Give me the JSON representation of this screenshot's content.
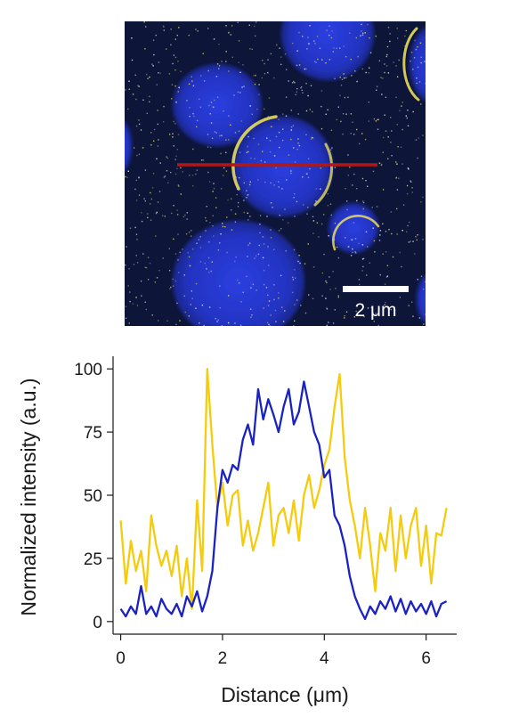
{
  "micrograph": {
    "scale_bar_label": "2 μm",
    "colors": {
      "background": "#0d1538",
      "blue_channel": "#2433c8",
      "yellow_channel": "#f5e85a",
      "line_profile": "#b01818",
      "scale_bar": "#ffffff"
    }
  },
  "chart_data": {
    "type": "line",
    "xlabel": "Distance (μm)",
    "ylabel": "Normalized intensity (a.u.)",
    "xlim": [
      -0.15,
      6.6
    ],
    "ylim": [
      -5,
      105
    ],
    "xticks": [
      0,
      2,
      4,
      6
    ],
    "yticks": [
      0,
      25,
      50,
      75,
      100
    ],
    "grid": false,
    "legend": "none",
    "series": [
      {
        "color": "#1a22c0",
        "x": [
          0,
          0.1,
          0.2,
          0.3,
          0.4,
          0.5,
          0.6,
          0.7,
          0.8,
          0.9,
          1.0,
          1.1,
          1.2,
          1.3,
          1.4,
          1.5,
          1.6,
          1.7,
          1.8,
          1.9,
          2.0,
          2.1,
          2.2,
          2.3,
          2.4,
          2.5,
          2.6,
          2.7,
          2.8,
          2.9,
          3.0,
          3.1,
          3.2,
          3.3,
          3.4,
          3.5,
          3.6,
          3.7,
          3.8,
          3.9,
          4.0,
          4.1,
          4.2,
          4.3,
          4.4,
          4.5,
          4.6,
          4.7,
          4.8,
          4.9,
          5.0,
          5.1,
          5.2,
          5.3,
          5.4,
          5.5,
          5.6,
          5.7,
          5.8,
          5.9,
          6.0,
          6.1,
          6.2,
          6.3,
          6.4
        ],
        "y": [
          5,
          2,
          6,
          3,
          14,
          3,
          6,
          2,
          9,
          5,
          3,
          7,
          2,
          10,
          6,
          12,
          4,
          10,
          20,
          45,
          60,
          55,
          62,
          60,
          72,
          78,
          70,
          92,
          80,
          88,
          82,
          75,
          85,
          92,
          78,
          83,
          95,
          85,
          75,
          70,
          57,
          60,
          42,
          38,
          30,
          18,
          10,
          5,
          1,
          6,
          3,
          8,
          5,
          10,
          4,
          9,
          3,
          8,
          4,
          7,
          3,
          8,
          2,
          7,
          8
        ]
      },
      {
        "color": "#f5cc0d",
        "x": [
          0,
          0.1,
          0.2,
          0.3,
          0.4,
          0.5,
          0.6,
          0.7,
          0.8,
          0.9,
          1.0,
          1.1,
          1.2,
          1.3,
          1.4,
          1.5,
          1.6,
          1.7,
          1.8,
          1.9,
          2.0,
          2.1,
          2.2,
          2.3,
          2.4,
          2.5,
          2.6,
          2.7,
          2.8,
          2.9,
          3.0,
          3.1,
          3.2,
          3.3,
          3.4,
          3.5,
          3.6,
          3.7,
          3.8,
          3.9,
          4.0,
          4.1,
          4.2,
          4.3,
          4.4,
          4.5,
          4.6,
          4.7,
          4.8,
          4.9,
          5.0,
          5.1,
          5.2,
          5.3,
          5.4,
          5.5,
          5.6,
          5.7,
          5.8,
          5.9,
          6.0,
          6.1,
          6.2,
          6.3,
          6.4
        ],
        "y": [
          40,
          15,
          32,
          20,
          28,
          12,
          42,
          30,
          22,
          28,
          18,
          30,
          10,
          25,
          5,
          48,
          20,
          100,
          70,
          45,
          55,
          38,
          50,
          52,
          30,
          40,
          28,
          35,
          45,
          55,
          30,
          42,
          45,
          35,
          48,
          32,
          50,
          58,
          45,
          52,
          62,
          68,
          85,
          98,
          65,
          48,
          38,
          25,
          45,
          30,
          12,
          35,
          28,
          45,
          20,
          42,
          25,
          38,
          45,
          22,
          38,
          15,
          35,
          34,
          45
        ]
      }
    ]
  }
}
